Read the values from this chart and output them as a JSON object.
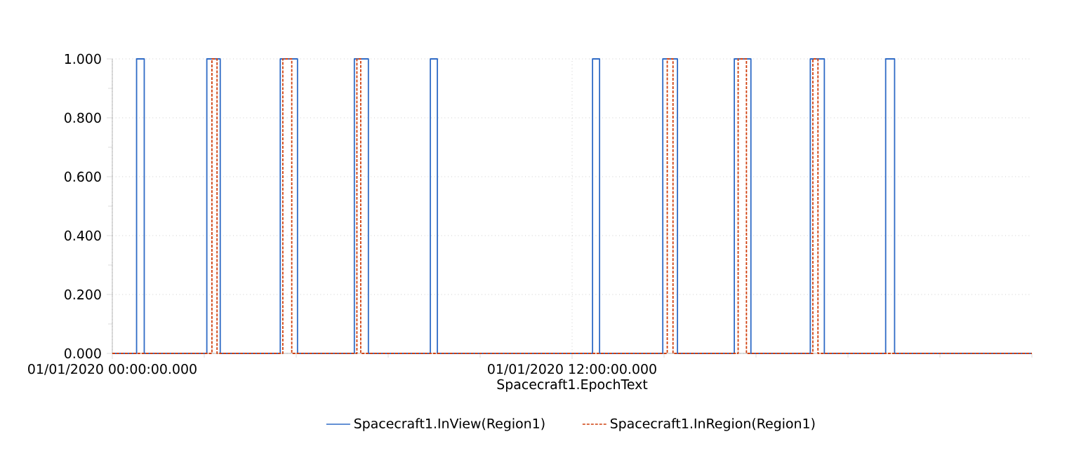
{
  "chart_data": {
    "type": "line",
    "xlabel": "Spacecraft1.EpochText",
    "xlim": [
      "2020-01-01T00:00",
      "2020-01-02T00:00"
    ],
    "xticks": [
      {
        "value": "2020-01-01T00:00",
        "label": "01/01/2020 00:00:00.000"
      },
      {
        "value": "2020-01-01T02:24",
        "label": null
      },
      {
        "value": "2020-01-01T04:48",
        "label": null
      },
      {
        "value": "2020-01-01T07:12",
        "label": null
      },
      {
        "value": "2020-01-01T09:36",
        "label": null
      },
      {
        "value": "2020-01-01T12:00",
        "label": "01/01/2020 12:00:00.000"
      },
      {
        "value": "2020-01-01T14:24",
        "label": null
      },
      {
        "value": "2020-01-01T16:48",
        "label": null
      },
      {
        "value": "2020-01-01T19:12",
        "label": null
      },
      {
        "value": "2020-01-01T21:36",
        "label": null
      },
      {
        "value": "2020-01-02T00:00",
        "label": null
      }
    ],
    "ylim": [
      0,
      1
    ],
    "yticks": [
      {
        "value": 0,
        "label": "0.000"
      },
      {
        "value": 0.1,
        "label": null
      },
      {
        "value": 0.2,
        "label": "0.200"
      },
      {
        "value": 0.3,
        "label": null
      },
      {
        "value": 0.4,
        "label": "0.400"
      },
      {
        "value": 0.5,
        "label": null
      },
      {
        "value": 0.6,
        "label": "0.600"
      },
      {
        "value": 0.7,
        "label": null
      },
      {
        "value": 0.8,
        "label": "0.800"
      },
      {
        "value": 0.9,
        "label": null
      },
      {
        "value": 1,
        "label": "1.000"
      }
    ],
    "grid": true,
    "legend": "bottom",
    "series": [
      {
        "name": "Spacecraft1.InView(Region1)",
        "color": "#2f6bc6",
        "line_style": "solid",
        "x": [
          "2020-01-01T00:00",
          "2020-01-01T00:38",
          "2020-01-01T00:38",
          "2020-01-01T00:50",
          "2020-01-01T00:50",
          "2020-01-01T02:28",
          "2020-01-01T02:28",
          "2020-01-01T02:49",
          "2020-01-01T02:49",
          "2020-01-01T04:23",
          "2020-01-01T04:23",
          "2020-01-01T04:50",
          "2020-01-01T04:50",
          "2020-01-01T06:19",
          "2020-01-01T06:19",
          "2020-01-01T06:41",
          "2020-01-01T06:41",
          "2020-01-01T08:18",
          "2020-01-01T08:18",
          "2020-01-01T08:29",
          "2020-01-01T08:29",
          "2020-01-01T12:32",
          "2020-01-01T12:32",
          "2020-01-01T12:43",
          "2020-01-01T12:43",
          "2020-01-01T14:22",
          "2020-01-01T14:22",
          "2020-01-01T14:45",
          "2020-01-01T14:45",
          "2020-01-01T16:14",
          "2020-01-01T16:14",
          "2020-01-01T16:40",
          "2020-01-01T16:40",
          "2020-01-01T18:13",
          "2020-01-01T18:13",
          "2020-01-01T18:35",
          "2020-01-01T18:35",
          "2020-01-01T20:11",
          "2020-01-01T20:11",
          "2020-01-01T20:25",
          "2020-01-01T20:25",
          "2020-01-02T00:00"
        ],
        "values": [
          0,
          0,
          1,
          1,
          0,
          0,
          1,
          1,
          0,
          0,
          1,
          1,
          0,
          0,
          1,
          1,
          0,
          0,
          1,
          1,
          0,
          0,
          1,
          1,
          0,
          0,
          1,
          1,
          0,
          0,
          1,
          1,
          0,
          0,
          1,
          1,
          0,
          0,
          1,
          1,
          0,
          0
        ]
      },
      {
        "name": "Spacecraft1.InRegion(Region1)",
        "color": "#d0400e",
        "line_style": "dashed",
        "x": [
          "2020-01-01T00:00",
          "2020-01-01T02:36",
          "2020-01-01T02:36",
          "2020-01-01T02:44",
          "2020-01-01T02:44",
          "2020-01-01T04:27",
          "2020-01-01T04:27",
          "2020-01-01T04:41",
          "2020-01-01T04:41",
          "2020-01-01T06:23",
          "2020-01-01T06:23",
          "2020-01-01T06:29",
          "2020-01-01T06:29",
          "2020-01-01T14:29",
          "2020-01-01T14:29",
          "2020-01-01T14:38",
          "2020-01-01T14:38",
          "2020-01-01T16:20",
          "2020-01-01T16:20",
          "2020-01-01T16:33",
          "2020-01-01T16:33",
          "2020-01-01T18:17",
          "2020-01-01T18:17",
          "2020-01-01T18:25",
          "2020-01-01T18:25",
          "2020-01-02T00:00"
        ],
        "values": [
          0,
          0,
          1,
          1,
          0,
          0,
          1,
          1,
          0,
          0,
          1,
          1,
          0,
          0,
          1,
          1,
          0,
          0,
          1,
          1,
          0,
          0,
          1,
          1,
          0,
          0
        ]
      }
    ]
  }
}
